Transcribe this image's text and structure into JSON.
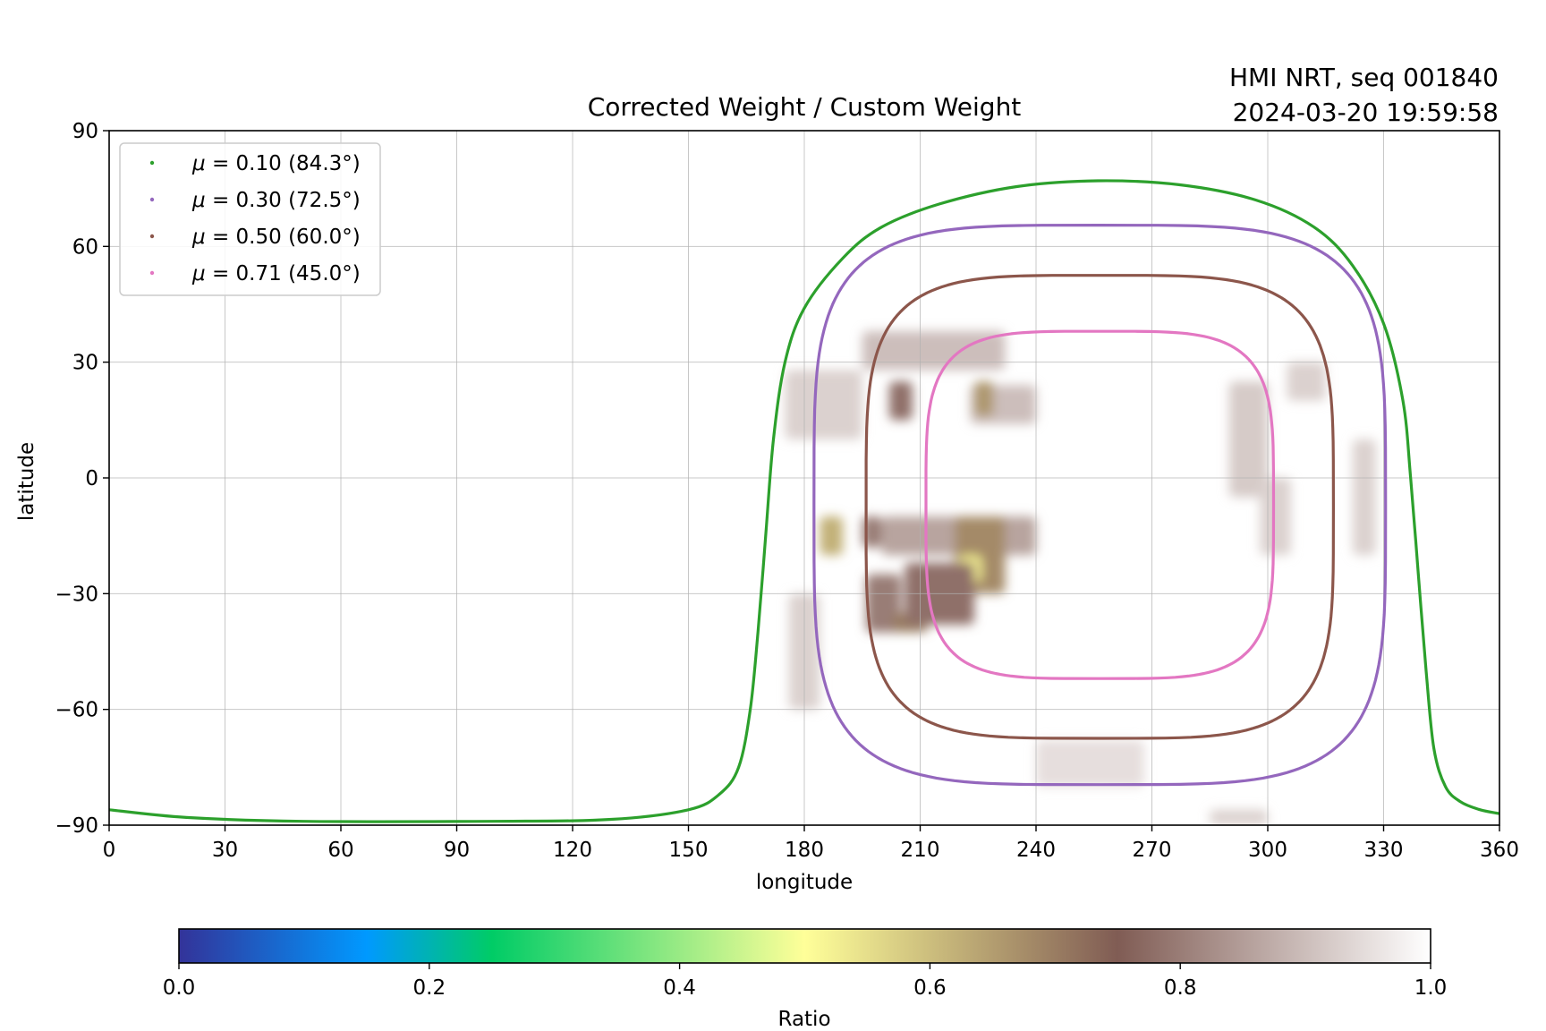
{
  "chart_data": {
    "type": "heatmap",
    "title": "Corrected Weight / Custom Weight",
    "corner_info": [
      "HMI NRT, seq 001840",
      "2024-03-20 19:59:58"
    ],
    "xlabel": "longitude",
    "ylabel": "latitude",
    "xlim": [
      0,
      360
    ],
    "ylim": [
      -90,
      90
    ],
    "xticks": [
      "0",
      "30",
      "60",
      "90",
      "120",
      "150",
      "180",
      "210",
      "240",
      "270",
      "300",
      "330",
      "360"
    ],
    "yticks": [
      "90",
      "60",
      "30",
      "0",
      "−30",
      "−60",
      "−90"
    ],
    "grid": true,
    "legend_placement": "top-left",
    "colorbar": {
      "label": "Ratio",
      "range": [
        0.0,
        1.0
      ],
      "ticks": [
        "0.0",
        "0.2",
        "0.4",
        "0.6",
        "0.8",
        "1.0"
      ],
      "colormap": "terrain",
      "stops": [
        {
          "v": 0.0,
          "color": "#333399"
        },
        {
          "v": 0.15,
          "color": "#0099ff"
        },
        {
          "v": 0.25,
          "color": "#00cc66"
        },
        {
          "v": 0.5,
          "color": "#ffff99"
        },
        {
          "v": 0.75,
          "color": "#805c54"
        },
        {
          "v": 1.0,
          "color": "#ffffff"
        }
      ]
    },
    "series": [
      {
        "name": "μ = 0.10 (84.3°)",
        "mu": "0.10",
        "angle": "84.3°",
        "color": "#2ca02c",
        "lon": [
          0,
          20,
          50,
          100,
          130,
          150,
          158,
          163,
          166,
          168,
          170,
          172,
          175,
          180,
          190,
          200,
          215,
          235,
          256,
          277,
          297,
          312,
          322,
          330,
          335,
          337,
          339,
          341,
          343,
          346,
          350,
          355,
          360
        ],
        "lat": [
          -86,
          -88,
          -89,
          -89,
          -88.5,
          -86,
          -82,
          -75,
          -60,
          -40,
          -15,
          10,
          30,
          44,
          57,
          65,
          71,
          75.5,
          77,
          76,
          72,
          65,
          55,
          40,
          20,
          0,
          -25,
          -50,
          -70,
          -80,
          -84,
          -86,
          -87
        ]
      },
      {
        "name": "μ = 0.30 (72.5°)",
        "mu": "0.30",
        "angle": "72.5°",
        "color": "#9467bd",
        "center_lon": 256.5,
        "center_lat": -7,
        "half_width_lon": 74,
        "half_height_lat": 72.5
      },
      {
        "name": "μ = 0.50 (60.0°)",
        "mu": "0.50",
        "angle": "60.0°",
        "color": "#8c564b",
        "center_lon": 256.5,
        "center_lat": -7.5,
        "half_width_lon": 60.5,
        "half_height_lat": 60
      },
      {
        "name": "μ = 0.71 (45.0°)",
        "mu": "0.71",
        "angle": "45.0°",
        "color": "#e377c2",
        "center_lon": 256.5,
        "center_lat": -7,
        "half_width_lon": 45,
        "half_height_lat": 45
      }
    ],
    "heat_patches": [
      {
        "lon": [
          175,
          195
        ],
        "lat": [
          28,
          10
        ],
        "ratio": 0.93
      },
      {
        "lon": [
          195,
          232
        ],
        "lat": [
          38,
          28
        ],
        "ratio": 0.9
      },
      {
        "lon": [
          176,
          184
        ],
        "lat": [
          -30,
          -60
        ],
        "ratio": 0.93
      },
      {
        "lon": [
          223,
          240
        ],
        "lat": [
          24,
          14
        ],
        "ratio": 0.9
      },
      {
        "lon": [
          184,
          190
        ],
        "lat": [
          -10,
          -20
        ],
        "ratio": 0.62
      },
      {
        "lon": [
          202,
          208
        ],
        "lat": [
          25,
          15
        ],
        "ratio": 0.78
      },
      {
        "lon": [
          224,
          229
        ],
        "lat": [
          25,
          16
        ],
        "ratio": 0.66
      },
      {
        "lon": [
          200,
          240
        ],
        "lat": [
          -10,
          -20
        ],
        "ratio": 0.86
      },
      {
        "lon": [
          219,
          232
        ],
        "lat": [
          -10,
          -30
        ],
        "ratio": 0.68
      },
      {
        "lon": [
          220,
          226
        ],
        "lat": [
          -20,
          -27
        ],
        "ratio": 0.53
      },
      {
        "lon": [
          196,
          205
        ],
        "lat": [
          -25,
          -40
        ],
        "ratio": 0.8
      },
      {
        "lon": [
          203,
          212
        ],
        "lat": [
          -35,
          -40
        ],
        "ratio": 0.7
      },
      {
        "lon": [
          206,
          224
        ],
        "lat": [
          -22,
          -38
        ],
        "ratio": 0.78
      },
      {
        "lon": [
          195,
          200
        ],
        "lat": [
          -10,
          -18
        ],
        "ratio": 0.8
      },
      {
        "lon": [
          290,
          300
        ],
        "lat": [
          25,
          -5
        ],
        "ratio": 0.92
      },
      {
        "lon": [
          298,
          306
        ],
        "lat": [
          0,
          -20
        ],
        "ratio": 0.93
      },
      {
        "lon": [
          305,
          315
        ],
        "lat": [
          30,
          20
        ],
        "ratio": 0.93
      },
      {
        "lon": [
          322,
          328
        ],
        "lat": [
          10,
          -20
        ],
        "ratio": 0.93
      },
      {
        "lon": [
          240,
          268
        ],
        "lat": [
          -68,
          -80
        ],
        "ratio": 0.95
      },
      {
        "lon": [
          285,
          300
        ],
        "lat": [
          -86,
          -90
        ],
        "ratio": 0.93
      }
    ]
  },
  "legend": [
    {
      "mu": "0.10",
      "angle": "(84.3°)",
      "color": "#2ca02c"
    },
    {
      "mu": "0.30",
      "angle": "(72.5°)",
      "color": "#9467bd"
    },
    {
      "mu": "0.50",
      "angle": "(60.0°)",
      "color": "#8c564b"
    },
    {
      "mu": "0.71",
      "angle": "(45.0°)",
      "color": "#e377c2"
    }
  ]
}
